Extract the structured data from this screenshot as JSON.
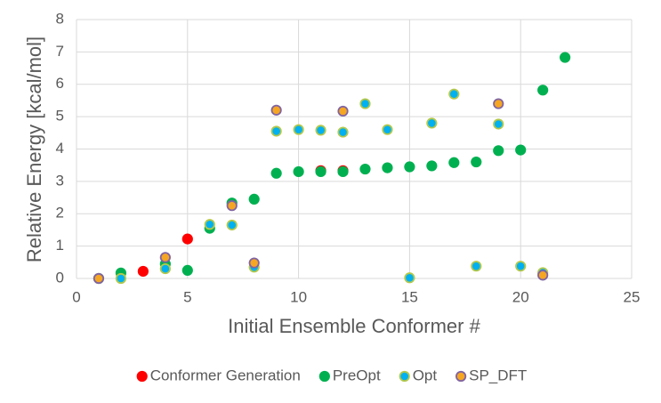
{
  "chart_data": {
    "type": "scatter",
    "xlabel": "Initial Ensemble Conformer #",
    "ylabel": "Relative Energy [kcal/mol]",
    "xlim": [
      0,
      25
    ],
    "xticks": [
      0,
      5,
      10,
      15,
      20,
      25
    ],
    "ylim": [
      0,
      8
    ],
    "yticks": [
      0,
      1,
      2,
      3,
      4,
      5,
      6,
      7,
      8
    ],
    "grid": true,
    "legend": "bottom",
    "series": [
      {
        "name": "Conformer Generation",
        "color": "#ff0000",
        "edgecolor": "#ff0000",
        "x": [
          3,
          5,
          11,
          12
        ],
        "values": [
          0.22,
          1.22,
          3.33,
          3.33
        ]
      },
      {
        "name": "PreOpt",
        "color": "#00b050",
        "edgecolor": "#00b050",
        "x": [
          1,
          2,
          4,
          5,
          6,
          7,
          8,
          9,
          10,
          11,
          12,
          13,
          14,
          15,
          16,
          17,
          18,
          19,
          20,
          21,
          22
        ],
        "values": [
          0,
          0.17,
          0.45,
          0.25,
          1.55,
          2.33,
          2.45,
          3.25,
          3.3,
          3.3,
          3.3,
          3.38,
          3.42,
          3.45,
          3.48,
          3.58,
          3.6,
          3.95,
          3.97,
          5.82,
          6.83
        ]
      },
      {
        "name": "Opt",
        "color": "#00b0f0",
        "edgecolor": "#b4c84a",
        "x": [
          1,
          2,
          4,
          6,
          7,
          8,
          9,
          10,
          11,
          12,
          13,
          14,
          15,
          16,
          17,
          18,
          19,
          20,
          21
        ],
        "values": [
          0,
          0,
          0.3,
          1.67,
          1.65,
          0.35,
          4.55,
          4.6,
          4.58,
          4.52,
          5.4,
          4.6,
          0.02,
          4.8,
          5.7,
          0.38,
          4.77,
          0.38,
          0.18
        ]
      },
      {
        "name": "SP_DFT",
        "color": "#f5a623",
        "edgecolor": "#8064a2",
        "x": [
          1,
          4,
          7,
          8,
          9,
          12,
          19,
          21
        ],
        "values": [
          0,
          0.65,
          2.25,
          0.48,
          5.2,
          5.17,
          5.4,
          0.1
        ]
      }
    ]
  }
}
